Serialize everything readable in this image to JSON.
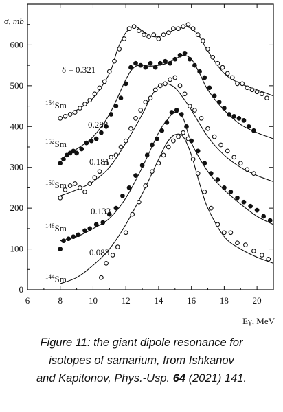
{
  "chart_data": {
    "type": "scatter",
    "ylabel": "σ, mb",
    "xlabel": "Eγ, MeV",
    "xlim": [
      6,
      21
    ],
    "ylim": [
      0,
      700
    ],
    "xticks": [
      "6",
      "8",
      "10",
      "12",
      "14",
      "16",
      "18",
      "20"
    ],
    "yticks": [
      "0",
      "100",
      "200",
      "300",
      "400",
      "500",
      "600"
    ],
    "grid": false,
    "series": [
      {
        "name": "144Sm",
        "deformation_label": "0.083",
        "marker": "open",
        "fit_x": [
          8,
          9,
          10,
          11,
          12,
          13,
          14,
          14.5,
          15,
          15.5,
          16,
          16.5,
          17,
          18,
          19,
          20,
          21
        ],
        "fit_y": [
          15,
          30,
          60,
          100,
          160,
          235,
          320,
          360,
          380,
          375,
          330,
          260,
          200,
          130,
          100,
          80,
          65
        ],
        "points_x": [
          10.5,
          10.8,
          11.2,
          11.5,
          12.0,
          12.4,
          12.8,
          13.2,
          13.6,
          14.0,
          14.3,
          14.6,
          14.9,
          15.2,
          15.5,
          15.8,
          16.1,
          16.4,
          16.8,
          17.2,
          17.6,
          18.0,
          18.4,
          18.8,
          19.3,
          19.8,
          20.3,
          20.7
        ],
        "points_y": [
          30,
          65,
          85,
          105,
          140,
          185,
          215,
          255,
          290,
          310,
          330,
          350,
          365,
          375,
          385,
          370,
          320,
          285,
          240,
          200,
          160,
          140,
          140,
          115,
          110,
          95,
          85,
          75
        ]
      },
      {
        "name": "148Sm",
        "deformation_label": "0.133",
        "marker": "filled",
        "fit_x": [
          8,
          9,
          10,
          11,
          12,
          13,
          14,
          14.5,
          15,
          15.5,
          16,
          17,
          18,
          19,
          20,
          21
        ],
        "fit_y": [
          120,
          130,
          150,
          175,
          225,
          300,
          385,
          415,
          435,
          420,
          360,
          290,
          245,
          210,
          180,
          160
        ],
        "points_x": [
          8.0,
          8.2,
          8.5,
          8.8,
          9.1,
          9.5,
          9.8,
          10.2,
          10.6,
          11.0,
          11.4,
          11.8,
          12.2,
          12.6,
          13.0,
          13.3,
          13.6,
          13.9,
          14.2,
          14.5,
          14.8,
          15.1,
          15.4,
          15.7,
          16.0,
          16.4,
          16.8,
          17.2,
          17.6,
          18.0,
          18.4,
          18.8,
          19.2,
          19.6,
          20.0,
          20.4,
          20.8
        ],
        "points_y": [
          100,
          120,
          125,
          130,
          135,
          145,
          150,
          160,
          165,
          185,
          200,
          230,
          250,
          280,
          305,
          330,
          355,
          370,
          390,
          410,
          435,
          440,
          430,
          400,
          365,
          340,
          310,
          285,
          270,
          250,
          240,
          225,
          215,
          205,
          195,
          180,
          170
        ]
      },
      {
        "name": "150Sm",
        "deformation_label": "0.181",
        "marker": "open",
        "fit_x": [
          8,
          9,
          10,
          11,
          12,
          13,
          13.5,
          14,
          14.5,
          15,
          15.5,
          16,
          17,
          18,
          19,
          20,
          21
        ],
        "fit_y": [
          230,
          245,
          265,
          300,
          360,
          430,
          470,
          500,
          505,
          495,
          470,
          440,
          375,
          330,
          300,
          280,
          265
        ],
        "points_x": [
          8.0,
          8.3,
          8.6,
          8.9,
          9.2,
          9.5,
          9.8,
          10.1,
          10.4,
          10.8,
          11.1,
          11.4,
          11.7,
          12.0,
          12.3,
          12.6,
          12.9,
          13.2,
          13.5,
          13.8,
          14.1,
          14.4,
          14.7,
          15.0,
          15.3,
          15.6,
          15.9,
          16.2,
          16.6,
          17.0,
          17.4,
          17.8,
          18.2,
          18.6,
          19.0,
          19.4,
          19.8
        ],
        "points_y": [
          225,
          245,
          255,
          260,
          250,
          240,
          260,
          275,
          290,
          310,
          325,
          330,
          350,
          365,
          395,
          420,
          440,
          460,
          470,
          490,
          500,
          505,
          515,
          520,
          500,
          480,
          450,
          440,
          420,
          395,
          375,
          355,
          340,
          325,
          310,
          295,
          285
        ]
      },
      {
        "name": "152Sm",
        "deformation_label": "0.288",
        "marker": "filled",
        "fit_x": [
          8,
          9,
          10,
          11,
          12,
          12.5,
          13,
          13.5,
          14,
          14.5,
          15,
          15.5,
          16,
          16.5,
          17,
          18,
          19,
          20,
          21
        ],
        "fit_y": [
          320,
          345,
          375,
          430,
          515,
          545,
          550,
          548,
          550,
          555,
          565,
          575,
          565,
          530,
          490,
          440,
          405,
          385,
          370
        ],
        "points_x": [
          8.0,
          8.2,
          8.4,
          8.6,
          8.8,
          9.0,
          9.3,
          9.6,
          9.9,
          10.2,
          10.5,
          10.8,
          11.1,
          11.4,
          11.7,
          12.0,
          12.3,
          12.6,
          12.9,
          13.2,
          13.5,
          13.8,
          14.1,
          14.4,
          14.7,
          15.0,
          15.3,
          15.6,
          15.9,
          16.2,
          16.5,
          16.8,
          17.1,
          17.4,
          17.7,
          18.0,
          18.3,
          18.6,
          18.9,
          19.2,
          19.5,
          19.8
        ],
        "points_y": [
          310,
          320,
          330,
          335,
          340,
          335,
          345,
          360,
          365,
          370,
          385,
          400,
          430,
          450,
          470,
          505,
          545,
          555,
          550,
          545,
          555,
          545,
          555,
          560,
          555,
          565,
          575,
          580,
          565,
          550,
          535,
          520,
          495,
          475,
          460,
          445,
          430,
          425,
          420,
          415,
          400,
          390
        ]
      },
      {
        "name": "154Sm",
        "deformation_label": "δ = 0.321",
        "marker": "open",
        "fit_x": [
          8,
          9,
          10,
          11,
          11.5,
          12,
          12.5,
          13,
          13.5,
          14,
          14.5,
          15,
          15.5,
          16,
          16.5,
          17,
          18,
          19,
          20,
          21
        ],
        "fit_y": [
          420,
          440,
          470,
          530,
          590,
          630,
          645,
          635,
          622,
          620,
          628,
          638,
          645,
          640,
          620,
          585,
          530,
          505,
          490,
          475
        ],
        "points_x": [
          8.0,
          8.3,
          8.6,
          8.9,
          9.2,
          9.5,
          9.8,
          10.1,
          10.4,
          10.7,
          11.0,
          11.3,
          11.6,
          11.9,
          12.2,
          12.5,
          12.8,
          13.1,
          13.4,
          13.7,
          14.0,
          14.3,
          14.6,
          14.9,
          15.2,
          15.5,
          15.8,
          16.1,
          16.4,
          16.7,
          17.0,
          17.3,
          17.6,
          17.9,
          18.2,
          18.5,
          18.8,
          19.1,
          19.4,
          19.7,
          20.0,
          20.3,
          20.6
        ],
        "points_y": [
          420,
          425,
          430,
          435,
          445,
          455,
          465,
          480,
          495,
          510,
          535,
          560,
          590,
          615,
          640,
          645,
          635,
          625,
          620,
          625,
          615,
          625,
          630,
          640,
          640,
          645,
          650,
          640,
          625,
          610,
          590,
          570,
          555,
          545,
          530,
          520,
          505,
          505,
          495,
          490,
          485,
          480,
          470
        ]
      }
    ]
  },
  "caption": {
    "line1": "Figure 11: the giant dipole resonance for",
    "line2": "isotopes of samarium, from Ishkanov",
    "line3_a": "and Kapitonov, Phys.-Usp. ",
    "line3_b": "64",
    "line3_c": " (2021) 141."
  }
}
